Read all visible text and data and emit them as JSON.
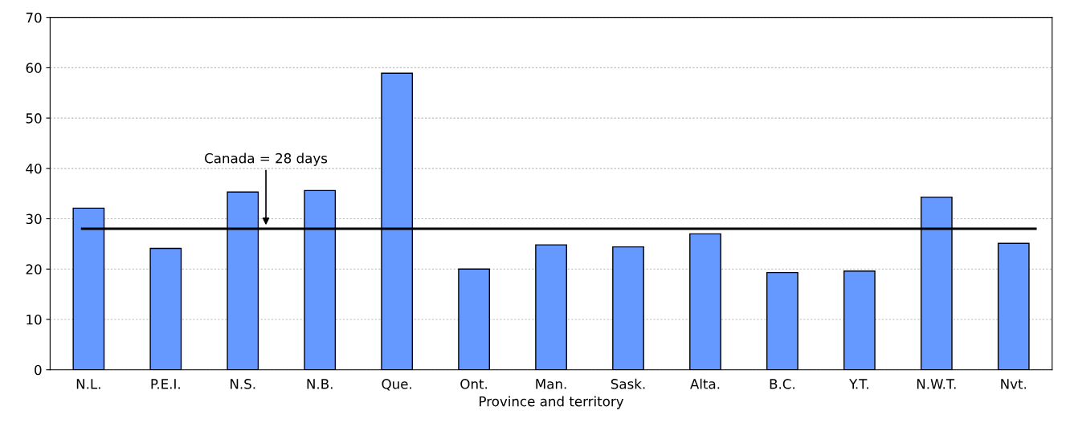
{
  "chart_data": {
    "type": "bar",
    "xlabel": "Province and territory",
    "categories": [
      "N.L.",
      "P.E.I.",
      "N.S.",
      "N.B.",
      "Que.",
      "Ont.",
      "Man.",
      "Sask.",
      "Alta.",
      "B.C.",
      "Y.T.",
      "N.W.T.",
      "Nvt."
    ],
    "values": [
      32.1,
      24.1,
      35.3,
      35.6,
      58.9,
      20.0,
      24.8,
      24.4,
      27.0,
      19.3,
      19.6,
      34.3,
      25.1
    ],
    "color": "#6699ff",
    "ylim": [
      0,
      70
    ],
    "yticks": [
      0,
      10,
      20,
      30,
      40,
      50,
      60,
      70
    ],
    "grid": "y",
    "ref_lines": [
      {
        "axis": "y",
        "value": 28,
        "label": "Canada = 28 days",
        "color": "#000000",
        "line_style": "solid"
      }
    ]
  }
}
